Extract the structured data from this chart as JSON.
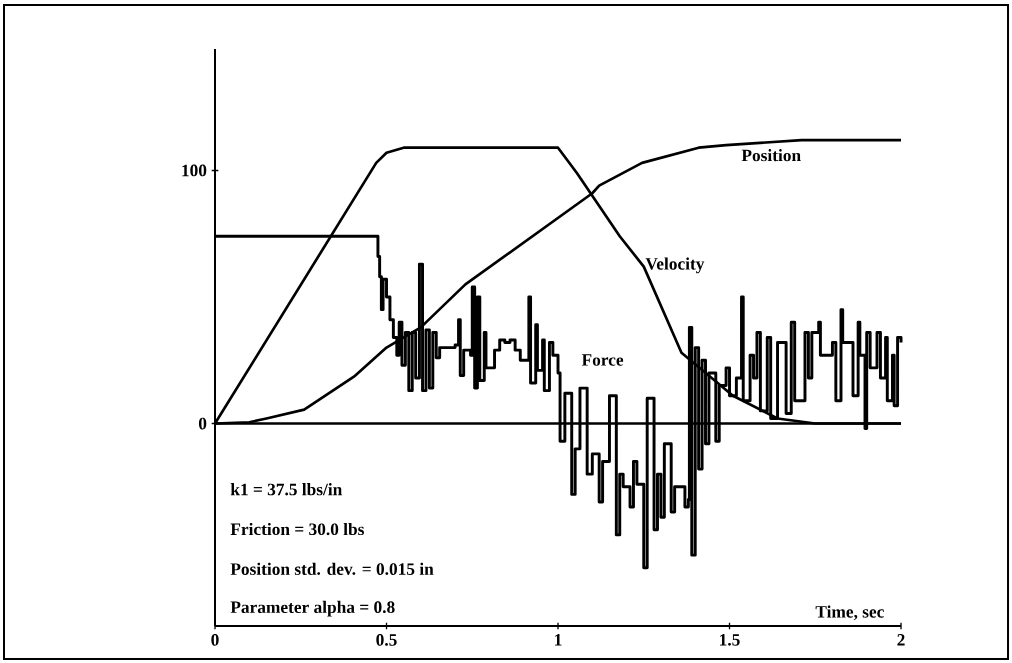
{
  "chart_data": {
    "type": "line",
    "xlabel": "Time, sec",
    "xlim": [
      0,
      2
    ],
    "xticks": [
      0,
      0.5,
      1,
      1.5,
      2
    ],
    "ylim": [
      -80,
      148
    ],
    "yticks": [
      0,
      100
    ],
    "grid": false,
    "marker": "none",
    "line_style": "solid",
    "ref_lines": [
      {
        "axis": "y",
        "value": 0,
        "color": "#000000"
      }
    ],
    "annotations": [
      "k1 = 37.5 lbs/in",
      "Friction = 30.0 lbs",
      "Position std. dev. = 0.015 in",
      "Parameter alpha = 0.8"
    ],
    "series": [
      {
        "name": "Position",
        "color": "#000000",
        "x": [
          0,
          0.1,
          0.15,
          0.26,
          0.405,
          0.5,
          0.6,
          0.73,
          1.1,
          1.12,
          1.245,
          1.41,
          1.49,
          1.71,
          2.0
        ],
        "values": [
          0,
          0.5,
          2,
          5.5,
          18.5,
          30,
          38,
          55,
          91,
          94,
          103,
          109,
          110,
          112,
          112
        ]
      },
      {
        "name": "Velocity",
        "color": "#000000",
        "x": [
          0,
          0.47,
          0.5,
          0.55,
          1.0,
          1.055,
          1.18,
          1.25,
          1.36,
          1.51,
          1.64,
          1.75,
          2.0
        ],
        "values": [
          0,
          103,
          107,
          109,
          109,
          99,
          74,
          62,
          28,
          11,
          2,
          0,
          0
        ]
      },
      {
        "name": "Force",
        "type": "step",
        "color": "#000000",
        "x": [
          0,
          0.47,
          0.475,
          0.48,
          0.485,
          0.49,
          0.5,
          0.51,
          0.52,
          0.53,
          0.537,
          0.545,
          0.555,
          0.565,
          0.575,
          0.585,
          0.596,
          0.605,
          0.615,
          0.625,
          0.635,
          0.645,
          0.655,
          0.7,
          0.71,
          0.715,
          0.725,
          0.745,
          0.75,
          0.757,
          0.765,
          0.772,
          0.785,
          0.79,
          0.805,
          0.815,
          0.83,
          0.845,
          0.86,
          0.875,
          0.89,
          0.9,
          0.915,
          0.92,
          0.935,
          0.94,
          0.955,
          0.96,
          0.975,
          0.985,
          1.0,
          1.006,
          1.02,
          1.04,
          1.05,
          1.064,
          1.085,
          1.1,
          1.12,
          1.13,
          1.15,
          1.17,
          1.18,
          1.19,
          1.21,
          1.22,
          1.23,
          1.25,
          1.26,
          1.28,
          1.29,
          1.3,
          1.31,
          1.33,
          1.34,
          1.37,
          1.38,
          1.383,
          1.39,
          1.4,
          1.41,
          1.42,
          1.43,
          1.44,
          1.46,
          1.47,
          1.49,
          1.5,
          1.52,
          1.535,
          1.54,
          1.56,
          1.57,
          1.58,
          1.59,
          1.61,
          1.62,
          1.64,
          1.66,
          1.665,
          1.68,
          1.69,
          1.72,
          1.73,
          1.74,
          1.76,
          1.765,
          1.78,
          1.8,
          1.81,
          1.825,
          1.83,
          1.85,
          1.86,
          1.875,
          1.88,
          1.895,
          1.9,
          1.91,
          1.93,
          1.94,
          1.955,
          1.96,
          1.975,
          1.98,
          1.99,
          2.0
        ],
        "values": [
          74,
          74,
          66,
          58,
          45,
          57,
          50,
          41,
          34,
          27,
          40,
          23,
          36,
          13,
          36,
          18,
          63,
          13,
          37,
          14,
          36,
          26,
          30,
          31,
          41,
          19,
          29,
          27,
          54,
          14,
          50,
          17,
          36,
          22,
          22,
          29,
          33,
          32,
          33,
          29,
          25,
          25,
          50,
          16,
          39,
          21,
          33,
          13,
          32,
          27,
          20,
          -7,
          12,
          -28,
          -10,
          14,
          -20,
          -12,
          -31,
          -15,
          11,
          -44,
          -20,
          -25,
          -33,
          -15,
          -24,
          -57,
          10,
          -42,
          -20,
          -37,
          -8,
          -35,
          -25,
          -33,
          -30,
          38,
          -52,
          30,
          -18,
          25,
          -8,
          20,
          -7,
          15,
          22,
          11,
          18,
          50,
          9,
          27,
          18,
          36,
          5,
          34,
          2,
          32,
          32,
          4,
          40,
          9,
          36,
          18,
          36,
          40,
          27,
          27,
          32,
          9,
          45,
          32,
          32,
          11,
          40,
          27,
          -2,
          36,
          22,
          36,
          18,
          34,
          9,
          27,
          7,
          34,
          32
        ]
      }
    ]
  }
}
